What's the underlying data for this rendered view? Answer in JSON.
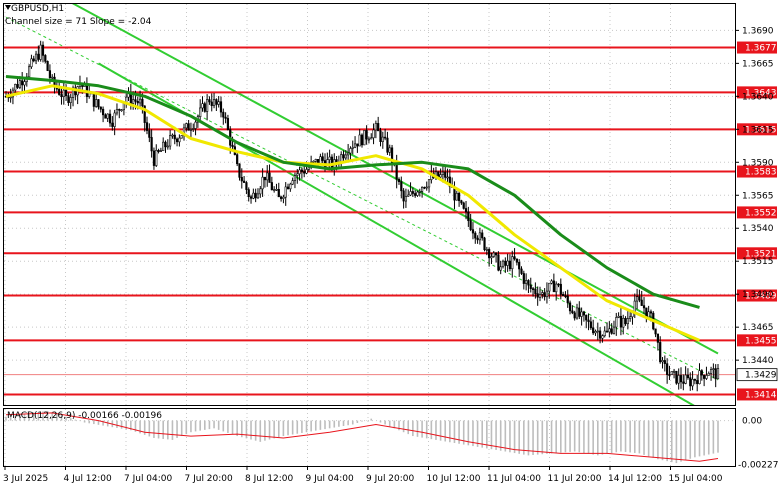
{
  "chart_data": {
    "type": "candlestick",
    "symbol_label": "GBPUSD,H1",
    "indicator_label": "Channel size = 71 Slope = -2.04",
    "y_axis_ticks": [
      "1.3690",
      "1.3665",
      "1.3640",
      "1.3615",
      "1.3590",
      "1.3565",
      "1.3540",
      "1.3515",
      "1.3490",
      "1.3465",
      "1.3440"
    ],
    "x_axis_labels": [
      "3 Jul 2025",
      "4 Jul 12:00",
      "7 Jul 04:00",
      "7 Jul 20:00",
      "8 Jul 12:00",
      "9 Jul 04:00",
      "9 Jul 20:00",
      "10 Jul 12:00",
      "11 Jul 04:00",
      "11 Jul 20:00",
      "14 Jul 12:00",
      "15 Jul 04:00"
    ],
    "ylim": [
      1.3406,
      1.371
    ],
    "levels": [
      {
        "label": "1.3677",
        "value": 1.3677
      },
      {
        "label": "1.3643",
        "value": 1.3643
      },
      {
        "label": "1.3615",
        "value": 1.3615
      },
      {
        "label": "1.3583",
        "value": 1.3583
      },
      {
        "label": "1.3552",
        "value": 1.3552
      },
      {
        "label": "1.3521",
        "value": 1.3521
      },
      {
        "label": "1.3489",
        "value": 1.3489
      },
      {
        "label": "1.3455",
        "value": 1.3455
      },
      {
        "label": "1.3414",
        "value": 1.3414
      }
    ],
    "current_price": {
      "label": "1.3429",
      "value": 1.3429
    },
    "close_path": [
      [
        0,
        1.364
      ],
      [
        8,
        1.3655
      ],
      [
        15,
        1.3675
      ],
      [
        20,
        1.365
      ],
      [
        26,
        1.3638
      ],
      [
        32,
        1.365
      ],
      [
        40,
        1.3632
      ],
      [
        46,
        1.3622
      ],
      [
        52,
        1.364
      ],
      [
        58,
        1.3635
      ],
      [
        64,
        1.3592
      ],
      [
        70,
        1.3605
      ],
      [
        76,
        1.3612
      ],
      [
        82,
        1.3622
      ],
      [
        88,
        1.3638
      ],
      [
        94,
        1.3628
      ],
      [
        100,
        1.3585
      ],
      [
        106,
        1.3562
      ],
      [
        112,
        1.358
      ],
      [
        118,
        1.3562
      ],
      [
        124,
        1.358
      ],
      [
        130,
        1.3585
      ],
      [
        136,
        1.3592
      ],
      [
        142,
        1.3588
      ],
      [
        148,
        1.3602
      ],
      [
        154,
        1.3608
      ],
      [
        160,
        1.3615
      ],
      [
        166,
        1.3598
      ],
      [
        172,
        1.356
      ],
      [
        178,
        1.357
      ],
      [
        184,
        1.3578
      ],
      [
        190,
        1.358
      ],
      [
        196,
        1.3558
      ],
      [
        202,
        1.354
      ],
      [
        208,
        1.3525
      ],
      [
        214,
        1.351
      ],
      [
        220,
        1.3515
      ],
      [
        226,
        1.3495
      ],
      [
        232,
        1.349
      ],
      [
        238,
        1.3498
      ],
      [
        244,
        1.348
      ],
      [
        250,
        1.347
      ],
      [
        256,
        1.3462
      ],
      [
        260,
        1.346
      ],
      [
        264,
        1.347
      ],
      [
        268,
        1.3468
      ],
      [
        272,
        1.3485
      ],
      [
        276,
        1.348
      ],
      [
        280,
        1.3468
      ],
      [
        284,
        1.3435
      ],
      [
        288,
        1.3428
      ],
      [
        292,
        1.3425
      ],
      [
        296,
        1.3424
      ],
      [
        300,
        1.3428
      ],
      [
        304,
        1.3432
      ],
      [
        308,
        1.3429
      ]
    ],
    "sma_fast": [
      [
        0,
        1.364
      ],
      [
        20,
        1.3648
      ],
      [
        40,
        1.3642
      ],
      [
        60,
        1.363
      ],
      [
        80,
        1.3608
      ],
      [
        100,
        1.3598
      ],
      [
        120,
        1.359
      ],
      [
        140,
        1.3588
      ],
      [
        160,
        1.3595
      ],
      [
        180,
        1.3585
      ],
      [
        200,
        1.3565
      ],
      [
        220,
        1.3535
      ],
      [
        240,
        1.351
      ],
      [
        260,
        1.3485
      ],
      [
        280,
        1.347
      ],
      [
        300,
        1.3455
      ]
    ],
    "sma_slow": [
      [
        0,
        1.3655
      ],
      [
        20,
        1.3652
      ],
      [
        40,
        1.3648
      ],
      [
        60,
        1.364
      ],
      [
        80,
        1.3625
      ],
      [
        100,
        1.3605
      ],
      [
        120,
        1.359
      ],
      [
        140,
        1.3585
      ],
      [
        160,
        1.3588
      ],
      [
        180,
        1.359
      ],
      [
        200,
        1.3585
      ],
      [
        220,
        1.3565
      ],
      [
        240,
        1.3535
      ],
      [
        260,
        1.351
      ],
      [
        280,
        1.349
      ],
      [
        300,
        1.348
      ]
    ],
    "channel": {
      "upper": [
        [
          0,
          1.3738
        ],
        [
          308,
          1.3445
        ]
      ],
      "middle": [
        [
          0,
          1.37
        ],
        [
          308,
          1.3425
        ]
      ],
      "lower": [
        [
          40,
          1.3665
        ],
        [
          308,
          1.3395
        ]
      ]
    },
    "macd": {
      "label": "MACD(12,26,9) -0.00166 -0.00196",
      "ticks": [
        "0.00",
        "-0.00227"
      ],
      "ylim": [
        -0.00235,
        0.0006
      ],
      "histogram": [
        [
          0,
          0.0002
        ],
        [
          10,
          0.0004
        ],
        [
          18,
          0.0005
        ],
        [
          26,
          0.0002
        ],
        [
          34,
          -0.0001
        ],
        [
          44,
          -0.0003
        ],
        [
          54,
          -0.0005
        ],
        [
          64,
          -0.0009
        ],
        [
          72,
          -0.001
        ],
        [
          80,
          -0.0006
        ],
        [
          90,
          -0.0004
        ],
        [
          100,
          -0.0008
        ],
        [
          110,
          -0.0011
        ],
        [
          120,
          -0.0008
        ],
        [
          130,
          -0.0006
        ],
        [
          140,
          -0.0004
        ],
        [
          150,
          -0.0002
        ],
        [
          158,
          0.0001
        ],
        [
          166,
          -0.0003
        ],
        [
          176,
          -0.0008
        ],
        [
          186,
          -0.001
        ],
        [
          196,
          -0.0012
        ],
        [
          206,
          -0.0014
        ],
        [
          216,
          -0.0016
        ],
        [
          226,
          -0.0018
        ],
        [
          236,
          -0.0017
        ],
        [
          246,
          -0.0016
        ],
        [
          256,
          -0.0018
        ],
        [
          266,
          -0.0016
        ],
        [
          274,
          -0.0017
        ],
        [
          282,
          -0.002
        ],
        [
          290,
          -0.0022
        ],
        [
          298,
          -0.0019
        ],
        [
          308,
          -0.00166
        ]
      ],
      "signal": [
        [
          0,
          0.0003
        ],
        [
          20,
          0.0004
        ],
        [
          40,
          0.0
        ],
        [
          60,
          -0.0006
        ],
        [
          80,
          -0.0008
        ],
        [
          100,
          -0.0007
        ],
        [
          120,
          -0.0009
        ],
        [
          140,
          -0.0006
        ],
        [
          160,
          -0.0002
        ],
        [
          180,
          -0.0006
        ],
        [
          200,
          -0.0011
        ],
        [
          220,
          -0.0015
        ],
        [
          240,
          -0.0017
        ],
        [
          260,
          -0.0017
        ],
        [
          280,
          -0.0019
        ],
        [
          300,
          -0.0021
        ],
        [
          308,
          -0.00196
        ]
      ]
    },
    "colors": {
      "level": "#e8141c",
      "channel": "#32cd32",
      "sma_fast": "#f0e800",
      "sma_slow": "#1a8c1a",
      "candle": "#000000",
      "grid": "#c8c8c8",
      "macd_hist": "#bdbdbd",
      "macd_signal": "#e8141c"
    }
  }
}
